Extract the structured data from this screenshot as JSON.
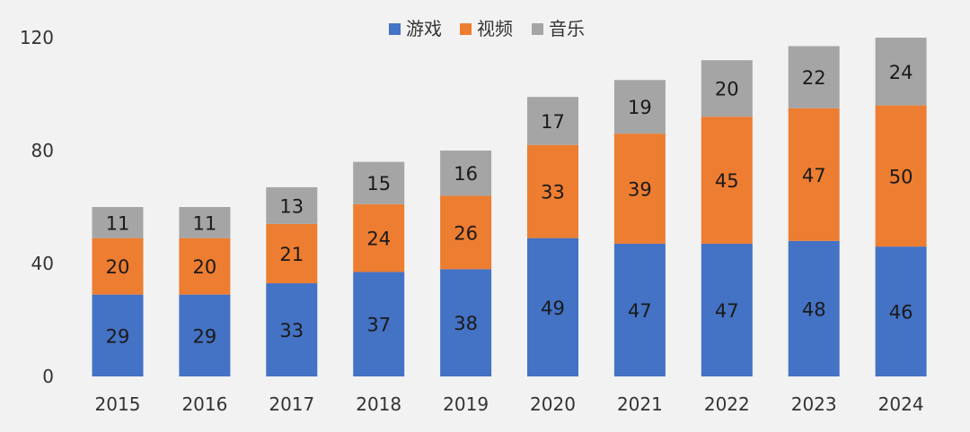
{
  "chart_data": {
    "type": "bar",
    "stacked": true,
    "categories": [
      "2015",
      "2016",
      "2017",
      "2018",
      "2019",
      "2020",
      "2021",
      "2022",
      "2023",
      "2024"
    ],
    "series": [
      {
        "name": "游戏",
        "color": "#4472c4",
        "values": [
          29,
          29,
          33,
          37,
          38,
          49,
          47,
          47,
          48,
          46
        ]
      },
      {
        "name": "视频",
        "color": "#ed7d31",
        "values": [
          20,
          20,
          21,
          24,
          26,
          33,
          39,
          45,
          47,
          50
        ]
      },
      {
        "name": "音乐",
        "color": "#a5a5a5",
        "values": [
          11,
          11,
          13,
          15,
          16,
          17,
          19,
          20,
          22,
          24
        ]
      }
    ],
    "y_ticks": [
      "0",
      "40",
      "80",
      "120"
    ],
    "ylim": [
      0,
      120
    ],
    "grid": false,
    "legend_position": "top-center",
    "data_labels": true
  }
}
